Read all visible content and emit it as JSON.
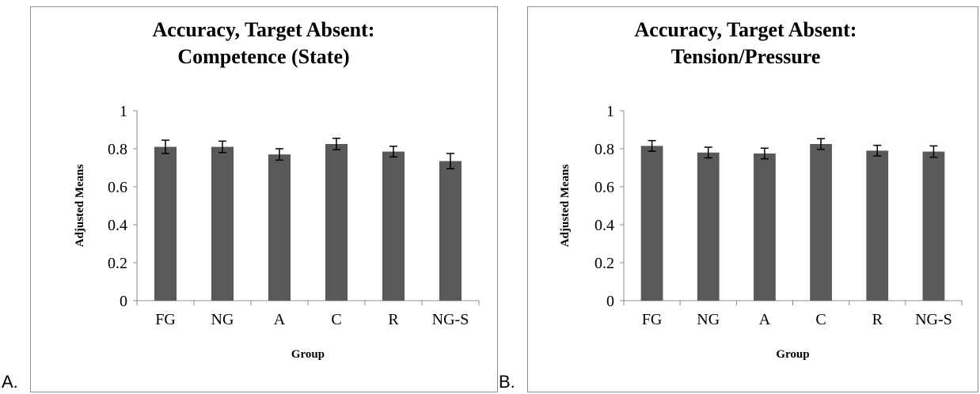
{
  "panel_labels": [
    "A.",
    "B."
  ],
  "chart_data": [
    {
      "type": "bar",
      "title_lines": [
        "Accuracy, Target Absent:",
        "Competence (State)"
      ],
      "xlabel": "Group",
      "ylabel": "Adjusted Means",
      "categories": [
        "FG",
        "NG",
        "A",
        "C",
        "R",
        "NG-S"
      ],
      "values": [
        0.81,
        0.81,
        0.77,
        0.825,
        0.785,
        0.735
      ],
      "errors": [
        0.035,
        0.03,
        0.03,
        0.03,
        0.028,
        0.04
      ],
      "ylim": [
        0,
        1
      ],
      "yticks": [
        "0",
        "0.2",
        "0.4",
        "0.6",
        "0.8",
        "1"
      ],
      "grid": false,
      "legend": "none",
      "bar_color": "#595959"
    },
    {
      "type": "bar",
      "title_lines": [
        "Accuracy, Target Absent:",
        "Tension/Pressure"
      ],
      "xlabel": "Group",
      "ylabel": "Adjusted Means",
      "categories": [
        "FG",
        "NG",
        "A",
        "C",
        "R",
        "NG-S"
      ],
      "values": [
        0.815,
        0.78,
        0.775,
        0.825,
        0.79,
        0.785
      ],
      "errors": [
        0.028,
        0.028,
        0.028,
        0.028,
        0.028,
        0.03
      ],
      "ylim": [
        0,
        1
      ],
      "yticks": [
        "0",
        "0.2",
        "0.4",
        "0.6",
        "0.8",
        "1"
      ],
      "grid": false,
      "legend": "none",
      "bar_color": "#595959"
    }
  ]
}
